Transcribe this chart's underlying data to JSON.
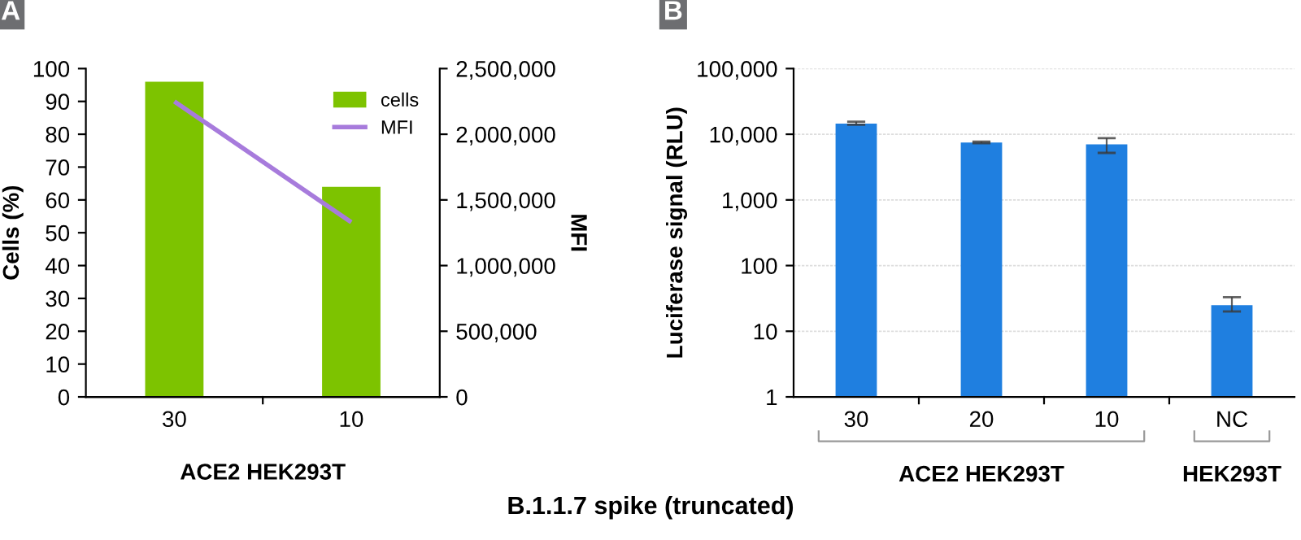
{
  "chart_data": [
    {
      "type": "bar",
      "categories": [
        "30",
        "10"
      ],
      "xlabel": "ACE2 HEK293T",
      "ylabel": "Cells (%)",
      "y2label": "MFI",
      "series": [
        {
          "name": "cells",
          "type": "bar",
          "color": "#7dc300",
          "values": [
            96,
            64
          ]
        },
        {
          "name": "MFI",
          "type": "line",
          "axis": "y2",
          "color": "#a77bdc",
          "values": [
            2250000,
            1330000
          ]
        }
      ],
      "ylim": [
        0,
        100
      ],
      "yticks": [
        0,
        10,
        20,
        30,
        40,
        50,
        60,
        70,
        80,
        90,
        100
      ],
      "y2lim": [
        0,
        2500000
      ],
      "y2ticks": [
        {
          "value": 0,
          "label": "0"
        },
        {
          "value": 500000,
          "label": "500,000"
        },
        {
          "value": 1000000,
          "label": "1,000,000"
        },
        {
          "value": 1500000,
          "label": "1,500,000"
        },
        {
          "value": 2000000,
          "label": "2,000,000"
        },
        {
          "value": 2500000,
          "label": "2,500,000"
        }
      ],
      "legend": "top right",
      "grid": false,
      "marker": "none",
      "annotations": [
        "A"
      ]
    },
    {
      "type": "bar",
      "categories": [
        "30",
        "20",
        "10",
        "NC"
      ],
      "ylabel": "Luciferase signal (RLU)",
      "series": [
        {
          "color": "#1f7fe0",
          "values": [
            14500,
            7500,
            7000,
            25
          ],
          "errors": [
            [
              14000,
              15500
            ],
            [
              7300,
              7700
            ],
            [
              5200,
              8700
            ],
            [
              20,
              33
            ]
          ]
        }
      ],
      "log": true,
      "ylim": [
        1,
        100000
      ],
      "yticks": [
        1,
        10,
        100,
        {
          "value": 1000,
          "label": "1,000"
        },
        {
          "value": 10000,
          "label": "10,000"
        },
        {
          "value": 100000,
          "label": "100,000"
        }
      ],
      "grid": "y",
      "annotations": [
        "B",
        "ACE2 HEK293T",
        "HEK293T",
        "B.1.1.7 spike (truncated)"
      ]
    }
  ]
}
